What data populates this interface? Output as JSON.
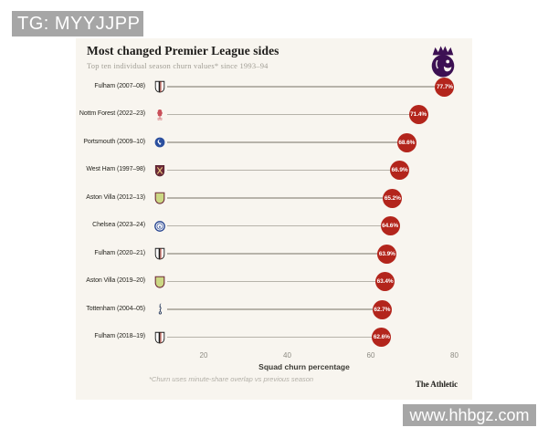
{
  "header_watermark": {
    "text": "TG: MYYJJPP"
  },
  "footer_watermark": {
    "text": "www.hhbgz.com"
  },
  "colors": {
    "page_bg": "#ffffff",
    "panel_bg": "#f8f5ef",
    "watermark_gray": "#a6a6a6",
    "dot_red": "#b3251c",
    "dot_text": "#ffffff",
    "line_gray": "#b7b3aa",
    "title_text": "#1e1d1b",
    "muted_text": "#a19e95",
    "tick_text": "#8d8b83",
    "pl_purple": "#3c1053"
  },
  "logo": {
    "name": "premier-league-lion"
  },
  "chart_data": {
    "type": "bar",
    "variant": "horizontal-lollipop",
    "title": "Most changed Premier League sides",
    "subtitle": "Top ten individual season churn values* since 1993–94",
    "xlabel": "Squad churn percentage",
    "footnote": "*Churn uses minute-share overlap vs previous season",
    "source": "The Athletic",
    "xticks": [
      20,
      40,
      60,
      80
    ],
    "xlim": [
      0,
      84
    ],
    "grid": false,
    "legend": false,
    "value_suffix": "%",
    "categories": [
      "Fulham (2007–08)",
      "Nottm Forest (2022–23)",
      "Portsmouth (2009–10)",
      "West Ham (1997–98)",
      "Aston Villa (2012–13)",
      "Chelsea (2023–24)",
      "Fulham (2020–21)",
      "Aston Villa (2019–20)",
      "Tottenham (2004–05)",
      "Fulham (2018–19)"
    ],
    "values": [
      77.7,
      71.4,
      68.6,
      66.9,
      65.2,
      64.6,
      63.9,
      63.4,
      62.7,
      62.6
    ],
    "teams": [
      {
        "label": "Fulham (2007–08)",
        "value": 77.7,
        "badge": "fulham"
      },
      {
        "label": "Nottm Forest (2022–23)",
        "value": 71.4,
        "badge": "nottm-forest"
      },
      {
        "label": "Portsmouth (2009–10)",
        "value": 68.6,
        "badge": "portsmouth"
      },
      {
        "label": "West Ham (1997–98)",
        "value": 66.9,
        "badge": "west-ham"
      },
      {
        "label": "Aston Villa (2012–13)",
        "value": 65.2,
        "badge": "aston-villa"
      },
      {
        "label": "Chelsea (2023–24)",
        "value": 64.6,
        "badge": "chelsea"
      },
      {
        "label": "Fulham (2020–21)",
        "value": 63.9,
        "badge": "fulham"
      },
      {
        "label": "Aston Villa (2019–20)",
        "value": 63.4,
        "badge": "aston-villa"
      },
      {
        "label": "Tottenham (2004–05)",
        "value": 62.7,
        "badge": "tottenham"
      },
      {
        "label": "Fulham (2018–19)",
        "value": 62.6,
        "badge": "fulham"
      }
    ]
  },
  "badges": {
    "fulham": {
      "primary": "#ffffff",
      "secondary": "#1b1b1b",
      "accent": "#c0392b"
    },
    "nottm-forest": {
      "primary": "#c9505a"
    },
    "portsmouth": {
      "primary": "#2b4f9e",
      "secondary": "#ffffff"
    },
    "west-ham": {
      "primary": "#6f2b3a",
      "secondary": "#e9c97d"
    },
    "aston-villa": {
      "primary": "#ccd884",
      "secondary": "#6f2b3a"
    },
    "chelsea": {
      "primary": "#ffffff",
      "secondary": "#23418e"
    },
    "tottenham": {
      "primary": "#1c2f55"
    }
  }
}
